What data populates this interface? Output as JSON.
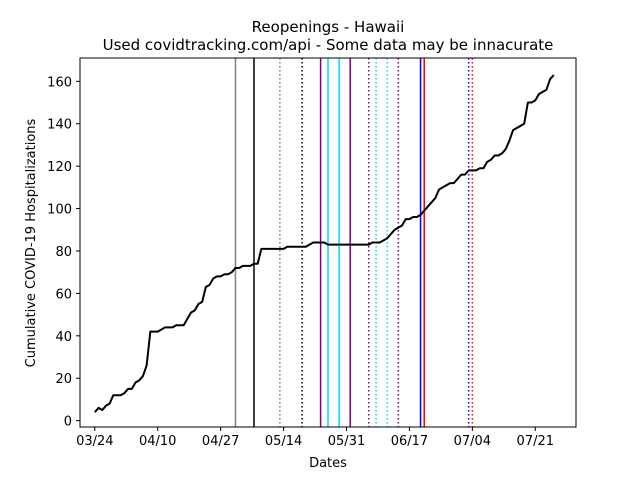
{
  "chart_data": {
    "type": "line",
    "title": "Reopenings - Hawaii",
    "subtitle": "Used covidtracking.com/api - Some data may be innacurate",
    "xlabel": "Dates",
    "ylabel": "Cumulative COVID-19 Hospitalizations",
    "x_axis_kind": "date",
    "xlim": [
      "2020-03-20",
      "2020-08-01"
    ],
    "ylim": [
      -3,
      171
    ],
    "grid": false,
    "xticks": [
      {
        "date": "2020-03-24",
        "label": "03/24"
      },
      {
        "date": "2020-04-10",
        "label": "04/10"
      },
      {
        "date": "2020-04-27",
        "label": "04/27"
      },
      {
        "date": "2020-05-14",
        "label": "05/14"
      },
      {
        "date": "2020-05-31",
        "label": "05/31"
      },
      {
        "date": "2020-06-17",
        "label": "06/17"
      },
      {
        "date": "2020-07-04",
        "label": "07/04"
      },
      {
        "date": "2020-07-21",
        "label": "07/21"
      }
    ],
    "yticks": [
      0,
      20,
      40,
      60,
      80,
      100,
      120,
      140,
      160
    ],
    "series": [
      {
        "color": "#000000",
        "points": [
          [
            "2020-03-24",
            4
          ],
          [
            "2020-03-25",
            6
          ],
          [
            "2020-03-26",
            5
          ],
          [
            "2020-03-27",
            7
          ],
          [
            "2020-03-28",
            8
          ],
          [
            "2020-03-29",
            12
          ],
          [
            "2020-03-31",
            12
          ],
          [
            "2020-04-01",
            13
          ],
          [
            "2020-04-02",
            15
          ],
          [
            "2020-04-03",
            15
          ],
          [
            "2020-04-04",
            18
          ],
          [
            "2020-04-05",
            19
          ],
          [
            "2020-04-06",
            21
          ],
          [
            "2020-04-07",
            26
          ],
          [
            "2020-04-08",
            42
          ],
          [
            "2020-04-09",
            42
          ],
          [
            "2020-04-10",
            42
          ],
          [
            "2020-04-11",
            43
          ],
          [
            "2020-04-12",
            44
          ],
          [
            "2020-04-14",
            44
          ],
          [
            "2020-04-15",
            45
          ],
          [
            "2020-04-17",
            45
          ],
          [
            "2020-04-18",
            48
          ],
          [
            "2020-04-19",
            51
          ],
          [
            "2020-04-20",
            52
          ],
          [
            "2020-04-21",
            55
          ],
          [
            "2020-04-22",
            56
          ],
          [
            "2020-04-23",
            63
          ],
          [
            "2020-04-24",
            64
          ],
          [
            "2020-04-25",
            67
          ],
          [
            "2020-04-26",
            68
          ],
          [
            "2020-04-27",
            68
          ],
          [
            "2020-04-28",
            69
          ],
          [
            "2020-04-29",
            69
          ],
          [
            "2020-04-30",
            70
          ],
          [
            "2020-05-01",
            72
          ],
          [
            "2020-05-02",
            72
          ],
          [
            "2020-05-03",
            73
          ],
          [
            "2020-05-05",
            73
          ],
          [
            "2020-05-06",
            74
          ],
          [
            "2020-05-07",
            74
          ],
          [
            "2020-05-08",
            81
          ],
          [
            "2020-05-14",
            81
          ],
          [
            "2020-05-15",
            82
          ],
          [
            "2020-05-20",
            82
          ],
          [
            "2020-05-21",
            83
          ],
          [
            "2020-05-22",
            84
          ],
          [
            "2020-05-25",
            84
          ],
          [
            "2020-05-26",
            83
          ],
          [
            "2020-06-05",
            83
          ],
          [
            "2020-06-06",
            83
          ],
          [
            "2020-06-07",
            84
          ],
          [
            "2020-06-09",
            84
          ],
          [
            "2020-06-10",
            85
          ],
          [
            "2020-06-11",
            86
          ],
          [
            "2020-06-12",
            88
          ],
          [
            "2020-06-13",
            90
          ],
          [
            "2020-06-14",
            91
          ],
          [
            "2020-06-15",
            92
          ],
          [
            "2020-06-16",
            95
          ],
          [
            "2020-06-17",
            95
          ],
          [
            "2020-06-18",
            96
          ],
          [
            "2020-06-19",
            96
          ],
          [
            "2020-06-20",
            97
          ],
          [
            "2020-06-21",
            99
          ],
          [
            "2020-06-22",
            101
          ],
          [
            "2020-06-23",
            103
          ],
          [
            "2020-06-24",
            105
          ],
          [
            "2020-06-25",
            109
          ],
          [
            "2020-06-26",
            110
          ],
          [
            "2020-06-27",
            111
          ],
          [
            "2020-06-28",
            112
          ],
          [
            "2020-06-29",
            112
          ],
          [
            "2020-06-30",
            114
          ],
          [
            "2020-07-01",
            116
          ],
          [
            "2020-07-02",
            116
          ],
          [
            "2020-07-03",
            118
          ],
          [
            "2020-07-04",
            118
          ],
          [
            "2020-07-05",
            118
          ],
          [
            "2020-07-06",
            119
          ],
          [
            "2020-07-07",
            119
          ],
          [
            "2020-07-08",
            122
          ],
          [
            "2020-07-09",
            123
          ],
          [
            "2020-07-10",
            125
          ],
          [
            "2020-07-11",
            125
          ],
          [
            "2020-07-12",
            126
          ],
          [
            "2020-07-13",
            128
          ],
          [
            "2020-07-14",
            132
          ],
          [
            "2020-07-15",
            137
          ],
          [
            "2020-07-16",
            138
          ],
          [
            "2020-07-17",
            139
          ],
          [
            "2020-07-18",
            140
          ],
          [
            "2020-07-19",
            150
          ],
          [
            "2020-07-20",
            150
          ],
          [
            "2020-07-21",
            151
          ],
          [
            "2020-07-22",
            154
          ],
          [
            "2020-07-23",
            155
          ],
          [
            "2020-07-24",
            156
          ],
          [
            "2020-07-25",
            161
          ],
          [
            "2020-07-26",
            163
          ]
        ]
      }
    ],
    "vertical_lines": [
      {
        "date": "2020-05-01",
        "color": "#808080",
        "style": "solid"
      },
      {
        "date": "2020-05-06",
        "color": "#000000",
        "style": "solid"
      },
      {
        "date": "2020-05-13",
        "color": "#808080",
        "style": "dotted"
      },
      {
        "date": "2020-05-19",
        "color": "#000000",
        "style": "dotted"
      },
      {
        "date": "2020-05-24",
        "color": "#800080",
        "style": "solid"
      },
      {
        "date": "2020-05-26",
        "color": "#00d8ff",
        "style": "solid"
      },
      {
        "date": "2020-05-29",
        "color": "#00d8ff",
        "style": "solid"
      },
      {
        "date": "2020-06-01",
        "color": "#800080",
        "style": "solid"
      },
      {
        "date": "2020-06-06",
        "color": "#800080",
        "style": "dotted"
      },
      {
        "date": "2020-06-08",
        "color": "#00d8ff",
        "style": "dotted"
      },
      {
        "date": "2020-06-11",
        "color": "#00d8ff",
        "style": "dotted"
      },
      {
        "date": "2020-06-14",
        "color": "#800080",
        "style": "dotted"
      },
      {
        "date": "2020-06-20",
        "color": "#0000ff",
        "style": "solid"
      },
      {
        "date": "2020-06-21",
        "color": "#ff0000",
        "style": "solid"
      },
      {
        "date": "2020-07-03",
        "color": "#0000ff",
        "style": "dotted"
      },
      {
        "date": "2020-07-04",
        "color": "#ff0000",
        "style": "dotted"
      }
    ]
  }
}
